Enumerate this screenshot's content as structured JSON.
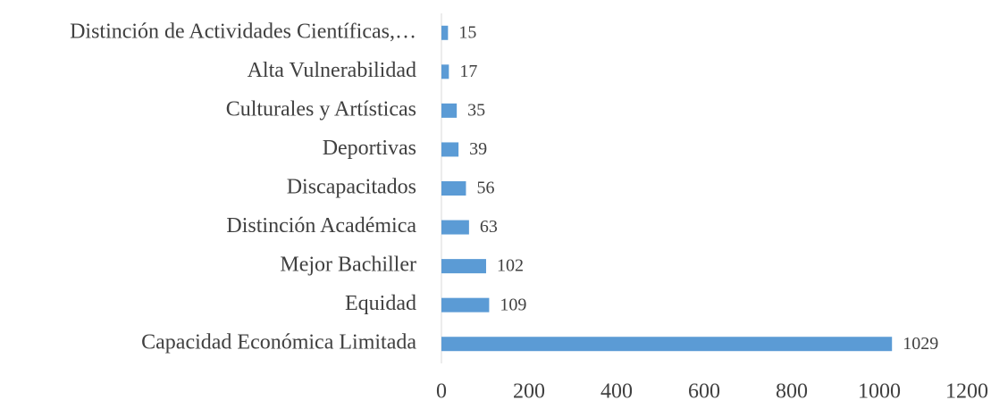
{
  "chart_data": {
    "type": "hbar",
    "categories": [
      "Distinción de Actividades Científicas,…",
      "Alta Vulnerabilidad",
      "Culturales y Artísticas",
      "Deportivas",
      "Discapacitados",
      "Distinción Académica",
      "Mejor Bachiller",
      "Equidad",
      "Capacidad Económica Limitada"
    ],
    "values": [
      15,
      17,
      35,
      39,
      56,
      63,
      102,
      109,
      1029
    ],
    "color": "#5b9bd5",
    "xlim": [
      0,
      1200
    ],
    "xticks": [
      0,
      200,
      400,
      600,
      800,
      1000,
      1200
    ],
    "grid": false
  }
}
